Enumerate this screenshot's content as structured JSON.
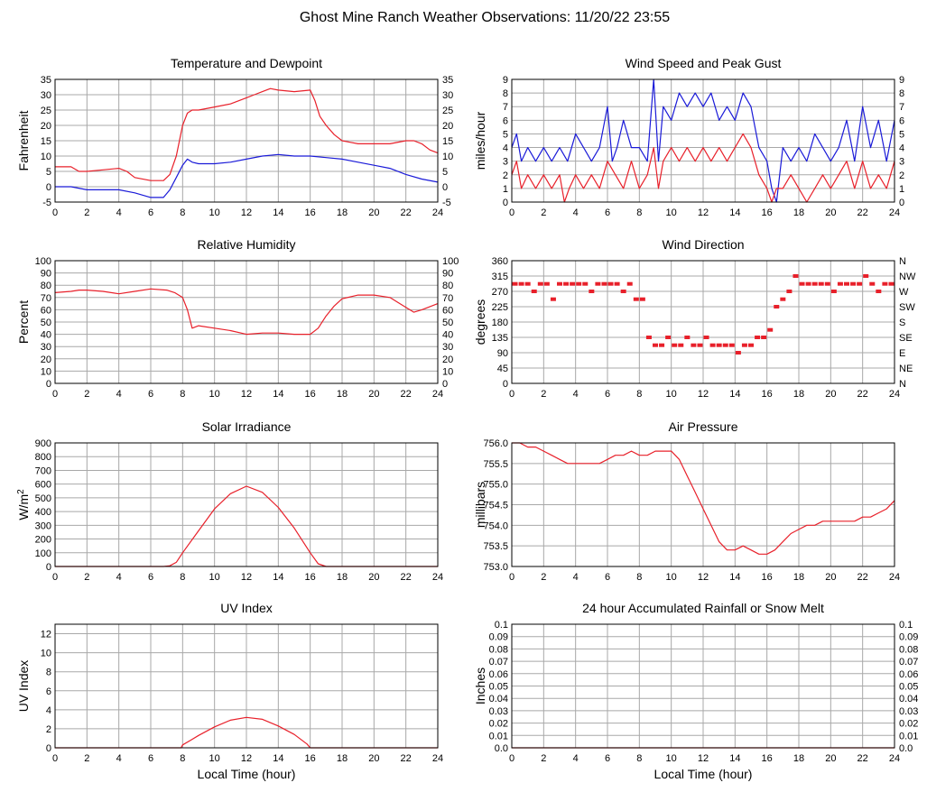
{
  "page_title": "Ghost Mine Ranch Weather Observations: 11/20/22 23:55",
  "colors": {
    "primary": "#e8202a",
    "secondary": "#1a1ad8",
    "grid": "#a8a8a8",
    "frame": "#000000"
  },
  "x_ticks": [
    "0",
    "2",
    "4",
    "6",
    "8",
    "10",
    "12",
    "14",
    "16",
    "18",
    "20",
    "22",
    "24"
  ],
  "x_axis_label": "Local Time (hour)",
  "chart_data": [
    {
      "id": "temp",
      "type": "line",
      "title": "Temperature and Dewpoint",
      "ylabel": "Fahrenheit",
      "xlim": [
        0,
        24
      ],
      "ylim": [
        -5,
        35
      ],
      "yticks": [
        -5,
        0,
        5,
        10,
        15,
        20,
        25,
        30,
        35
      ],
      "ytick_labels": [
        "-5",
        "0",
        "5",
        "10",
        "15",
        "20",
        "25",
        "30",
        "35"
      ],
      "right_tick_labels": [
        "-5",
        "0",
        "5",
        "10",
        "15",
        "20",
        "25",
        "30",
        "35"
      ],
      "grid": true,
      "series": [
        {
          "color": "#e8202a",
          "x": [
            0,
            1,
            1.5,
            2,
            3,
            4,
            4.5,
            5,
            6,
            6.8,
            7.2,
            7.6,
            8,
            8.3,
            8.6,
            9,
            10,
            11,
            12,
            12.5,
            13,
            13.5,
            14,
            15,
            16,
            16.3,
            16.6,
            17,
            17.5,
            18,
            18.5,
            19,
            20,
            21,
            22,
            22.5,
            23,
            23.5,
            24
          ],
          "y": [
            6.5,
            6.5,
            5,
            5,
            5.5,
            6,
            5,
            3,
            2,
            2,
            4,
            10,
            20,
            24,
            25,
            25,
            26,
            27,
            29,
            30,
            31,
            32,
            31.5,
            31,
            31.5,
            28,
            23,
            20,
            17,
            15,
            14.5,
            14,
            14,
            14,
            15,
            15,
            14,
            12,
            11
          ]
        },
        {
          "color": "#1a1ad8",
          "x": [
            0,
            1,
            2,
            3,
            4,
            5,
            6,
            6.8,
            7.2,
            7.6,
            8,
            8.3,
            8.6,
            9,
            10,
            11,
            12,
            13,
            14,
            15,
            16,
            17,
            18,
            19,
            20,
            21,
            22,
            23,
            24
          ],
          "y": [
            0,
            0,
            -1,
            -1,
            -1,
            -2,
            -3.5,
            -3.5,
            -1,
            3,
            7,
            9,
            8,
            7.5,
            7.5,
            8,
            9,
            10,
            10.5,
            10,
            10,
            9.5,
            9,
            8,
            7,
            6,
            4,
            2.5,
            1.5
          ]
        }
      ]
    },
    {
      "id": "wind",
      "type": "line",
      "title": "Wind Speed and Peak Gust",
      "ylabel": "miles/hour",
      "xlim": [
        0,
        24
      ],
      "ylim": [
        0,
        9
      ],
      "yticks": [
        0,
        1,
        2,
        3,
        4,
        5,
        6,
        7,
        8,
        9
      ],
      "ytick_labels": [
        "0",
        "1",
        "2",
        "3",
        "4",
        "5",
        "6",
        "7",
        "8",
        "9"
      ],
      "right_tick_labels": [
        "0",
        "1",
        "2",
        "3",
        "4",
        "5",
        "6",
        "7",
        "8",
        "9"
      ],
      "grid": true,
      "series": [
        {
          "color": "#1a1ad8",
          "x": [
            0,
            0.3,
            0.6,
            1,
            1.5,
            2,
            2.5,
            3,
            3.5,
            4,
            4.5,
            5,
            5.5,
            6,
            6.3,
            6.6,
            7,
            7.5,
            8,
            8.5,
            8.9,
            9.2,
            9.5,
            10,
            10.5,
            11,
            11.5,
            12,
            12.5,
            13,
            13.5,
            14,
            14.5,
            15,
            15.5,
            16,
            16.3,
            16.6,
            17,
            17.5,
            18,
            18.5,
            19,
            19.5,
            20,
            20.5,
            21,
            21.5,
            22,
            22.5,
            23,
            23.5,
            24
          ],
          "y": [
            4,
            5,
            3,
            4,
            3,
            4,
            3,
            4,
            3,
            5,
            4,
            3,
            4,
            7,
            3,
            4,
            6,
            4,
            4,
            3,
            9,
            3,
            7,
            6,
            8,
            7,
            8,
            7,
            8,
            6,
            7,
            6,
            8,
            7,
            4,
            3,
            1,
            0,
            4,
            3,
            4,
            3,
            5,
            4,
            3,
            4,
            6,
            3,
            7,
            4,
            6,
            3,
            6
          ]
        },
        {
          "color": "#e8202a",
          "x": [
            0,
            0.3,
            0.6,
            1,
            1.5,
            2,
            2.5,
            3,
            3.3,
            3.6,
            4,
            4.5,
            5,
            5.5,
            6,
            6.5,
            7,
            7.5,
            8,
            8.5,
            8.9,
            9.2,
            9.5,
            10,
            10.5,
            11,
            11.5,
            12,
            12.5,
            13,
            13.5,
            14,
            14.5,
            15,
            15.5,
            16,
            16.3,
            16.6,
            17,
            17.5,
            18,
            18.5,
            19,
            19.5,
            20,
            20.5,
            21,
            21.5,
            22,
            22.5,
            23,
            23.5,
            24
          ],
          "y": [
            2,
            3,
            1,
            2,
            1,
            2,
            1,
            2,
            0,
            1,
            2,
            1,
            2,
            1,
            3,
            2,
            1,
            3,
            1,
            2,
            4,
            1,
            3,
            4,
            3,
            4,
            3,
            4,
            3,
            4,
            3,
            4,
            5,
            4,
            2,
            1,
            0,
            1,
            1,
            2,
            1,
            0,
            1,
            2,
            1,
            2,
            3,
            1,
            3,
            1,
            2,
            1,
            3
          ]
        }
      ]
    },
    {
      "id": "rh",
      "type": "line",
      "title": "Relative Humidity",
      "ylabel": "Percent",
      "xlim": [
        0,
        24
      ],
      "ylim": [
        0,
        100
      ],
      "yticks": [
        0,
        10,
        20,
        30,
        40,
        50,
        60,
        70,
        80,
        90,
        100
      ],
      "ytick_labels": [
        "0",
        "10",
        "20",
        "30",
        "40",
        "50",
        "60",
        "70",
        "80",
        "90",
        "100"
      ],
      "right_tick_labels": [
        "0",
        "10",
        "20",
        "30",
        "40",
        "50",
        "60",
        "70",
        "80",
        "90",
        "100"
      ],
      "grid": true,
      "series": [
        {
          "color": "#e8202a",
          "x": [
            0,
            1,
            1.5,
            2,
            3,
            4,
            5,
            6,
            7,
            7.5,
            8,
            8.3,
            8.6,
            9,
            10,
            11,
            12,
            13,
            14,
            15,
            16,
            16.5,
            17,
            17.5,
            18,
            19,
            20,
            21,
            21.5,
            22,
            22.5,
            23,
            24
          ],
          "y": [
            74,
            75,
            76,
            76,
            75,
            73,
            75,
            77,
            76,
            74,
            70,
            60,
            45,
            47,
            45,
            43,
            40,
            41,
            41,
            40,
            40,
            45,
            55,
            63,
            69,
            72,
            72,
            70,
            66,
            62,
            58,
            60,
            65
          ]
        }
      ]
    },
    {
      "id": "wdir",
      "type": "scatter",
      "title": "Wind Direction",
      "ylabel": "degrees",
      "xlim": [
        0,
        24
      ],
      "ylim": [
        0,
        360
      ],
      "yticks": [
        0,
        45,
        90,
        135,
        180,
        225,
        270,
        315,
        360
      ],
      "ytick_labels": [
        "0",
        "45",
        "90",
        "135",
        "180",
        "225",
        "270",
        "315",
        "360"
      ],
      "right_tick_labels": [
        "N",
        "NE",
        "E",
        "SE",
        "S",
        "SW",
        "W",
        "NW",
        "N"
      ],
      "grid": true,
      "series": [
        {
          "color": "#e8202a",
          "x": [
            0.2,
            0.6,
            1.0,
            1.4,
            1.8,
            2.2,
            2.6,
            3.0,
            3.4,
            3.8,
            4.2,
            4.6,
            5.0,
            5.4,
            5.8,
            6.2,
            6.6,
            7.0,
            7.4,
            7.8,
            8.2,
            8.6,
            9.0,
            9.4,
            9.8,
            10.2,
            10.6,
            11.0,
            11.4,
            11.8,
            12.2,
            12.6,
            13.0,
            13.4,
            13.8,
            14.2,
            14.6,
            15.0,
            15.4,
            15.8,
            16.2,
            16.6,
            17.0,
            17.4,
            17.8,
            18.2,
            18.6,
            19.0,
            19.4,
            19.8,
            20.2,
            20.6,
            21.0,
            21.4,
            21.8,
            22.2,
            22.6,
            23.0,
            23.4,
            23.8
          ],
          "y": [
            292,
            292,
            292,
            270,
            292,
            292,
            247,
            292,
            292,
            292,
            292,
            292,
            270,
            292,
            292,
            292,
            292,
            270,
            292,
            247,
            247,
            135,
            112,
            112,
            135,
            112,
            112,
            135,
            112,
            112,
            135,
            112,
            112,
            112,
            112,
            90,
            112,
            112,
            135,
            135,
            157,
            225,
            247,
            270,
            315,
            292,
            292,
            292,
            292,
            292,
            270,
            292,
            292,
            292,
            292,
            315,
            292,
            270,
            292,
            292
          ]
        }
      ]
    },
    {
      "id": "solar",
      "type": "area",
      "title": "Solar Irradiance",
      "ylabel": "W/m2",
      "xlim": [
        0,
        24
      ],
      "ylim": [
        0,
        900
      ],
      "yticks": [
        0,
        100,
        200,
        300,
        400,
        500,
        600,
        700,
        800,
        900
      ],
      "ytick_labels": [
        "0",
        "100",
        "200",
        "300",
        "400",
        "500",
        "600",
        "700",
        "800",
        "900"
      ],
      "grid": true,
      "series": [
        {
          "color": "#e8202a",
          "x": [
            0,
            6.8,
            7.2,
            7.6,
            8,
            9,
            10,
            11,
            12,
            13,
            14,
            15,
            16,
            16.5,
            17,
            24
          ],
          "y": [
            0,
            0,
            5,
            30,
            100,
            260,
            420,
            530,
            585,
            540,
            430,
            280,
            100,
            20,
            0,
            0
          ]
        }
      ]
    },
    {
      "id": "pressure",
      "type": "line",
      "title": "Air Pressure",
      "ylabel": "millibars",
      "xlim": [
        0,
        24
      ],
      "ylim": [
        753.0,
        756.0
      ],
      "yticks": [
        753.0,
        753.5,
        754.0,
        754.5,
        755.0,
        755.5,
        756.0
      ],
      "ytick_labels": [
        "753.0",
        "753.5",
        "754.0",
        "754.5",
        "755.0",
        "755.5",
        "756.0"
      ],
      "grid": true,
      "series": [
        {
          "color": "#e8202a",
          "x": [
            0,
            0.5,
            1,
            1.5,
            2,
            2.5,
            3,
            3.5,
            4,
            4.5,
            5,
            5.5,
            6,
            6.5,
            7,
            7.5,
            8,
            8.5,
            9,
            9.5,
            10,
            10.5,
            11,
            11.5,
            12,
            12.5,
            13,
            13.5,
            14,
            14.5,
            15,
            15.5,
            16,
            16.5,
            17,
            17.5,
            18,
            18.5,
            19,
            19.5,
            20,
            20.5,
            21,
            21.5,
            22,
            22.5,
            23,
            23.5,
            24
          ],
          "y": [
            756.0,
            756.0,
            755.9,
            755.9,
            755.8,
            755.7,
            755.6,
            755.5,
            755.5,
            755.5,
            755.5,
            755.5,
            755.6,
            755.7,
            755.7,
            755.8,
            755.7,
            755.7,
            755.8,
            755.8,
            755.8,
            755.6,
            755.2,
            754.8,
            754.4,
            754.0,
            753.6,
            753.4,
            753.4,
            753.5,
            753.4,
            753.3,
            753.3,
            753.4,
            753.6,
            753.8,
            753.9,
            754.0,
            754.0,
            754.1,
            754.1,
            754.1,
            754.1,
            754.1,
            754.2,
            754.2,
            754.3,
            754.4,
            754.6
          ]
        }
      ]
    },
    {
      "id": "uv",
      "type": "line",
      "title": "UV Index",
      "ylabel": "UV Index",
      "xlim": [
        0,
        24
      ],
      "ylim": [
        0,
        13
      ],
      "yticks": [
        0,
        2,
        4,
        6,
        8,
        10,
        12
      ],
      "ytick_labels": [
        "0",
        "2",
        "4",
        "6",
        "8",
        "10",
        "12"
      ],
      "grid": true,
      "series": [
        {
          "color": "#e8202a",
          "x": [
            0,
            7.9,
            8,
            8.5,
            9,
            10,
            11,
            12,
            13,
            14,
            15,
            15.8,
            16,
            24
          ],
          "y": [
            0,
            0,
            0.3,
            0.8,
            1.3,
            2.2,
            2.9,
            3.2,
            3.0,
            2.3,
            1.4,
            0.4,
            0,
            0
          ]
        }
      ]
    },
    {
      "id": "rain",
      "type": "line",
      "title": "24 hour Accumulated Rainfall or Snow Melt",
      "ylabel": "Inches",
      "xlim": [
        0,
        24
      ],
      "ylim": [
        0,
        0.1
      ],
      "yticks": [
        0,
        0.01,
        0.02,
        0.03,
        0.04,
        0.05,
        0.06,
        0.07,
        0.08,
        0.09,
        0.1
      ],
      "ytick_labels": [
        "0.0",
        "0.01",
        "0.02",
        "0.03",
        "0.04",
        "0.05",
        "0.06",
        "0.07",
        "0.08",
        "0.09",
        "0.1"
      ],
      "right_tick_labels": [
        "0.0",
        "0.01",
        "0.02",
        "0.03",
        "0.04",
        "0.05",
        "0.06",
        "0.07",
        "0.08",
        "0.09",
        "0.1"
      ],
      "grid": true,
      "series": [
        {
          "color": "#e8202a",
          "x": [
            0,
            24
          ],
          "y": [
            0,
            0
          ]
        }
      ]
    }
  ]
}
